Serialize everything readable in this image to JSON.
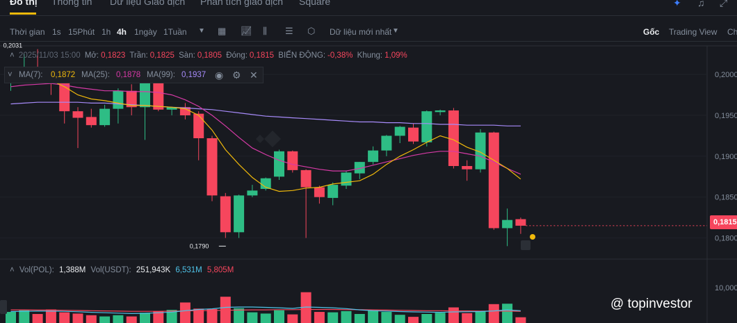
{
  "nav": {
    "tabs": [
      "Đồ thị",
      "Thông tin",
      "Dữ liệu Giao dịch",
      "Phân tích giao dịch",
      "Square"
    ],
    "active": 0,
    "icons": [
      "ai-sparkle-icon",
      "bell-icon",
      "expand-icon"
    ]
  },
  "toolbar": {
    "time_label": "Thời gian",
    "intervals": [
      "1s",
      "15Phút",
      "1h",
      "4h",
      "1ngày",
      "1Tuần"
    ],
    "active_interval": "4h",
    "data_label": "Dữ liệu mới nhất",
    "views": [
      "Gốc",
      "Trading View",
      "Ch"
    ],
    "icons": [
      "chevron-down-icon",
      "calendar-icon",
      "indicator-icon",
      "candle-type-icon",
      "settings-icon",
      "hexagon-icon"
    ]
  },
  "ohlc": {
    "date": "2025/11/03 15:00",
    "open_label": "Mở:",
    "open": "0,1823",
    "high_label": "Trần:",
    "high": "0,1825",
    "low_label": "Sàn:",
    "low": "0,1805",
    "close_label": "Đóng:",
    "close": "0,1815",
    "change_label": "BIẾN ĐỘNG:",
    "change": "-0,38%",
    "range_label": "Khung:",
    "range": "1,09%"
  },
  "ma": {
    "ma7_label": "MA(7):",
    "ma7": "0,1872",
    "ma25_label": "MA(25):",
    "ma25": "0,1878",
    "ma99_label": "MA(99):",
    "ma99": "0,1937"
  },
  "volume_info": {
    "vol_label": "Vol(POL):",
    "vol": "1,388M",
    "usdt_label": "Vol(USDT):",
    "usdt": "251,943K",
    "ma1": "6,531M",
    "ma2": "5,805M"
  },
  "price_tag": "0,1815",
  "watermark": "@ topinvestor",
  "colors": {
    "up": "#2ebd85",
    "down": "#f6465d",
    "ma7": "#f0b90b",
    "ma25": "#d63aa6",
    "ma99": "#a78bfa",
    "bg": "#181a20",
    "grid": "#2b2f36"
  },
  "chart_data": {
    "type": "candlestick",
    "interval": "4h",
    "y_ticks": [
      "0,2000",
      "0,1950",
      "0,1900",
      "0,1850",
      "0,1800"
    ],
    "ylim": [
      0.1775,
      0.2035
    ],
    "annotations": {
      "high_label": "0,2031",
      "low_label": "0,1790"
    },
    "candles": [
      {
        "o": 0.1993,
        "h": 0.2,
        "l": 0.198,
        "c": 0.1998
      },
      {
        "o": 0.1999,
        "h": 0.2025,
        "l": 0.199,
        "c": 0.2003
      },
      {
        "o": 0.2005,
        "h": 0.2031,
        "l": 0.1995,
        "c": 0.2
      },
      {
        "o": 0.2001,
        "h": 0.2009,
        "l": 0.1975,
        "c": 0.1994
      },
      {
        "o": 0.1999,
        "h": 0.2,
        "l": 0.194,
        "c": 0.1955
      },
      {
        "o": 0.1955,
        "h": 0.196,
        "l": 0.191,
        "c": 0.1947
      },
      {
        "o": 0.1948,
        "h": 0.1958,
        "l": 0.1935,
        "c": 0.1938
      },
      {
        "o": 0.1938,
        "h": 0.1963,
        "l": 0.1936,
        "c": 0.1958
      },
      {
        "o": 0.1958,
        "h": 0.1983,
        "l": 0.194,
        "c": 0.198
      },
      {
        "o": 0.198,
        "h": 0.1988,
        "l": 0.195,
        "c": 0.196
      },
      {
        "o": 0.196,
        "h": 0.1995,
        "l": 0.192,
        "c": 0.1991
      },
      {
        "o": 0.1991,
        "h": 0.2005,
        "l": 0.1955,
        "c": 0.1957
      },
      {
        "o": 0.1957,
        "h": 0.196,
        "l": 0.195,
        "c": 0.196
      },
      {
        "o": 0.196,
        "h": 0.1965,
        "l": 0.1945,
        "c": 0.195
      },
      {
        "o": 0.1952,
        "h": 0.1955,
        "l": 0.1895,
        "c": 0.1922
      },
      {
        "o": 0.1922,
        "h": 0.1925,
        "l": 0.1845,
        "c": 0.1852
      },
      {
        "o": 0.1851,
        "h": 0.1855,
        "l": 0.18,
        "c": 0.1807
      },
      {
        "o": 0.1807,
        "h": 0.1853,
        "l": 0.18,
        "c": 0.1852
      },
      {
        "o": 0.1852,
        "h": 0.1865,
        "l": 0.185,
        "c": 0.1858
      },
      {
        "o": 0.186,
        "h": 0.1874,
        "l": 0.1858,
        "c": 0.1873
      },
      {
        "o": 0.1875,
        "h": 0.1908,
        "l": 0.1871,
        "c": 0.1906
      },
      {
        "o": 0.1906,
        "h": 0.1907,
        "l": 0.188,
        "c": 0.1883
      },
      {
        "o": 0.1883,
        "h": 0.1884,
        "l": 0.18,
        "c": 0.1862
      },
      {
        "o": 0.1862,
        "h": 0.1864,
        "l": 0.1842,
        "c": 0.185
      },
      {
        "o": 0.1849,
        "h": 0.1868,
        "l": 0.184,
        "c": 0.1865
      },
      {
        "o": 0.1864,
        "h": 0.1882,
        "l": 0.186,
        "c": 0.188
      },
      {
        "o": 0.1879,
        "h": 0.1893,
        "l": 0.1872,
        "c": 0.1893
      },
      {
        "o": 0.1893,
        "h": 0.1912,
        "l": 0.189,
        "c": 0.1907
      },
      {
        "o": 0.1907,
        "h": 0.1926,
        "l": 0.19,
        "c": 0.1925
      },
      {
        "o": 0.1925,
        "h": 0.1937,
        "l": 0.1916,
        "c": 0.1936
      },
      {
        "o": 0.1935,
        "h": 0.194,
        "l": 0.1915,
        "c": 0.1918
      },
      {
        "o": 0.1917,
        "h": 0.1956,
        "l": 0.1912,
        "c": 0.1955
      },
      {
        "o": 0.1954,
        "h": 0.1957,
        "l": 0.195,
        "c": 0.1956
      },
      {
        "o": 0.1956,
        "h": 0.1959,
        "l": 0.1885,
        "c": 0.1888
      },
      {
        "o": 0.1888,
        "h": 0.1895,
        "l": 0.187,
        "c": 0.1884
      },
      {
        "o": 0.1884,
        "h": 0.1933,
        "l": 0.188,
        "c": 0.1929
      },
      {
        "o": 0.1929,
        "h": 0.193,
        "l": 0.181,
        "c": 0.1812
      },
      {
        "o": 0.1812,
        "h": 0.1836,
        "l": 0.179,
        "c": 0.1822
      },
      {
        "o": 0.1823,
        "h": 0.1825,
        "l": 0.1805,
        "c": 0.1815
      }
    ],
    "ma7": [
      0.1992,
      0.1994,
      0.1995,
      0.1993,
      0.1985,
      0.1975,
      0.197,
      0.1968,
      0.1965,
      0.1962,
      0.1962,
      0.1961,
      0.196,
      0.1958,
      0.195,
      0.1932,
      0.1908,
      0.189,
      0.1874,
      0.1862,
      0.1857,
      0.1858,
      0.1861,
      0.1862,
      0.1866,
      0.1868,
      0.187,
      0.1878,
      0.189,
      0.19,
      0.1908,
      0.1917,
      0.1925,
      0.192,
      0.1911,
      0.1905,
      0.1895,
      0.1885,
      0.1872
    ],
    "ma25": [
      0.1985,
      0.1987,
      0.1988,
      0.1989,
      0.1987,
      0.1984,
      0.1982,
      0.198,
      0.198,
      0.1979,
      0.1979,
      0.1978,
      0.1975,
      0.1969,
      0.1961,
      0.195,
      0.1937,
      0.1923,
      0.191,
      0.1902,
      0.1895,
      0.189,
      0.1887,
      0.1884,
      0.1882,
      0.1882,
      0.1885,
      0.1889,
      0.1893,
      0.1897,
      0.1901,
      0.1904,
      0.1906,
      0.1906,
      0.1903,
      0.19,
      0.1893,
      0.1885,
      0.1878
    ],
    "ma99": [
      0.1964,
      0.1965,
      0.1966,
      0.1966,
      0.1966,
      0.1966,
      0.1965,
      0.1965,
      0.1964,
      0.1963,
      0.1962,
      0.1961,
      0.196,
      0.1959,
      0.1958,
      0.1957,
      0.1955,
      0.1953,
      0.1951,
      0.1949,
      0.1948,
      0.1947,
      0.1946,
      0.1945,
      0.1944,
      0.1943,
      0.1942,
      0.1942,
      0.1941,
      0.1941,
      0.194,
      0.194,
      0.1939,
      0.1939,
      0.1938,
      0.1938,
      0.1938,
      0.1937,
      0.1937
    ],
    "volume": {
      "y_tick": "10,000",
      "ylim": [
        0,
        11000000
      ],
      "values": [
        2700000,
        3100000,
        2200000,
        3300000,
        2600000,
        2300000,
        1900000,
        1600000,
        1900000,
        1600000,
        2500000,
        2900000,
        3200000,
        5000000,
        3500000,
        3400000,
        6400000,
        3600000,
        2600000,
        2300000,
        3100000,
        2100000,
        7500000,
        2700000,
        2600000,
        2900000,
        2200000,
        3100000,
        2700000,
        2000000,
        1500000,
        2200000,
        2500000,
        3800000,
        2400000,
        2900000,
        4600000,
        4700000,
        1400000
      ],
      "ma_blue": [
        2800000,
        2850000,
        2900000,
        2900000,
        2850000,
        2750000,
        2600000,
        2500000,
        2400000,
        2300000,
        2350000,
        2500000,
        2650000,
        3000000,
        3300000,
        3450000,
        3800000,
        3900000,
        3900000,
        3800000,
        3700000,
        3550000,
        3900000,
        3800000,
        3700000,
        3500000,
        3200000,
        3000000,
        2900000,
        2800000,
        2700000,
        2650000,
        2600000,
        2700000,
        2750000,
        2800000,
        2950000,
        3200000,
        3000000
      ],
      "ma_red": [
        3200000,
        3200000,
        3150000,
        3150000,
        3100000,
        3050000,
        3000000,
        2950000,
        2900000,
        2850000,
        2850000,
        2850000,
        2900000,
        2950000,
        3000000,
        3050000,
        3100000,
        3150000,
        3200000,
        3200000,
        3250000,
        3250000,
        3300000,
        3300000,
        3300000,
        3250000,
        3250000,
        3200000,
        3150000,
        3100000,
        3050000,
        3000000,
        3000000,
        2950000,
        2950000,
        2900000,
        2900000,
        2900000,
        2850000
      ]
    }
  }
}
